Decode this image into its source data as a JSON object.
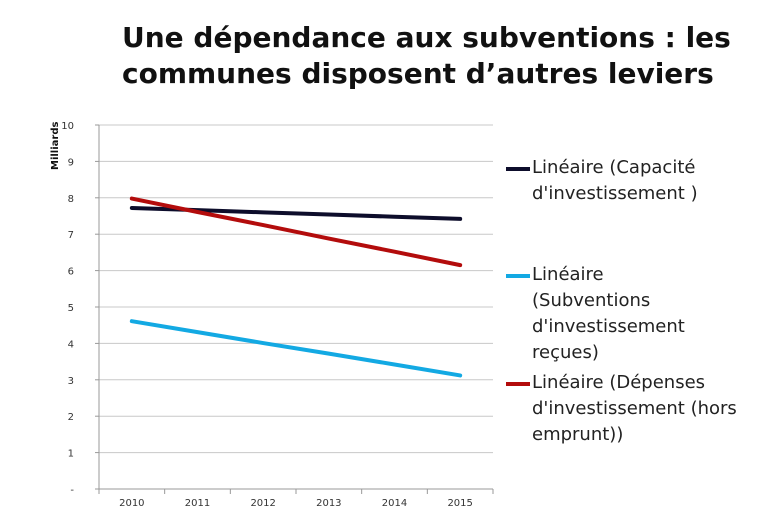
{
  "title": "Une dépendance aux subventions : les communes disposent d’autres leviers",
  "chart_data": {
    "type": "line",
    "title": "Une dépendance aux subventions : les communes disposent d’autres leviers",
    "ylabel": "Milliards",
    "xlabel": "",
    "categories": [
      "2010",
      "2011",
      "2012",
      "2013",
      "2014",
      "2015"
    ],
    "ylim": [
      0,
      10
    ],
    "yticks": [
      "-",
      "1",
      "2",
      "3",
      "4",
      "5",
      "6",
      "7",
      "8",
      "9",
      "10"
    ],
    "grid": true,
    "legend_position": "right",
    "series": [
      {
        "name": "Linéaire (Capacité d'investissement )",
        "color": "#0d0d2b",
        "values": [
          7.72,
          7.66,
          7.6,
          7.54,
          7.48,
          7.42
        ]
      },
      {
        "name": "Linéaire (Subventions d'investissement reçues)",
        "color": "#13a9e3",
        "values": [
          4.61,
          4.31,
          4.01,
          3.72,
          3.42,
          3.12
        ]
      },
      {
        "name": "Linéaire (Dépenses d'investissement (hors emprunt))",
        "color": "#b30c0c",
        "values": [
          7.98,
          7.61,
          7.25,
          6.88,
          6.52,
          6.15
        ]
      }
    ]
  }
}
